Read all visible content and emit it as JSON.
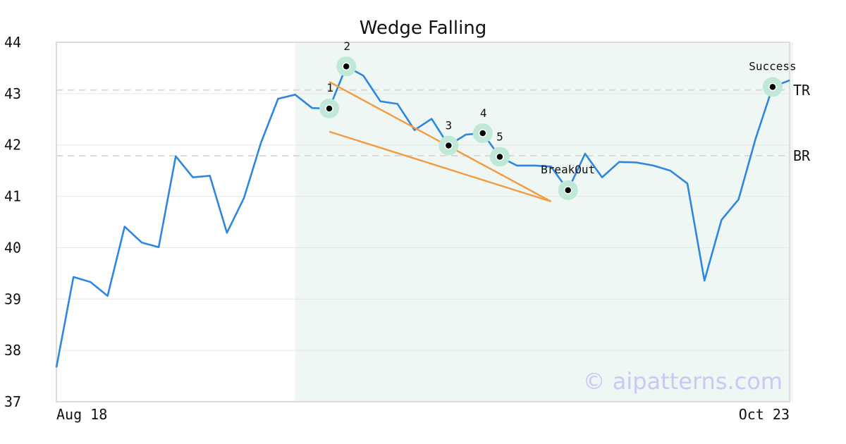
{
  "chart_data": {
    "type": "line",
    "title": "Wedge Falling",
    "xlabel": "",
    "ylabel": "",
    "ylim": [
      37,
      44
    ],
    "y_ticks": [
      37,
      38,
      39,
      40,
      41,
      42,
      43,
      44
    ],
    "x_tick_labels": [
      "Aug 18",
      "Oct 23"
    ],
    "grid": true,
    "series": [
      {
        "color": "#2e86de",
        "values": [
          37.67,
          39.43,
          39.33,
          39.06,
          40.41,
          40.1,
          40.01,
          41.78,
          41.37,
          41.4,
          40.29,
          40.97,
          42.05,
          42.9,
          42.98,
          42.72,
          42.71,
          43.53,
          43.35,
          42.85,
          42.8,
          42.29,
          42.51,
          41.99,
          42.2,
          42.23,
          41.77,
          41.6,
          41.6,
          41.58,
          41.12,
          41.83,
          41.37,
          41.67,
          41.66,
          41.6,
          41.5,
          41.25,
          39.36,
          40.54,
          40.94,
          42.12,
          43.13,
          43.26
        ]
      }
    ],
    "highlight_region": {
      "start_index": 14,
      "end_index": 43.2,
      "color": "#eef7f3"
    },
    "reference_lines": [
      {
        "label": "TR",
        "value": 43.07
      },
      {
        "label": "BR",
        "value": 41.79
      }
    ],
    "pattern_points": [
      {
        "label": "1",
        "index": 16,
        "value": 42.71
      },
      {
        "label": "2",
        "index": 17,
        "value": 43.53
      },
      {
        "label": "3",
        "index": 23,
        "value": 41.99
      },
      {
        "label": "4",
        "index": 25,
        "value": 42.23
      },
      {
        "label": "5",
        "index": 26,
        "value": 41.77
      },
      {
        "label": "BreakOut",
        "index": 30,
        "value": 41.12
      },
      {
        "label": "Success",
        "index": 42,
        "value": 43.13
      }
    ],
    "trend_lines": [
      {
        "from_index": 16,
        "from_value": 43.23,
        "to_index": 29,
        "to_value": 40.9
      },
      {
        "from_index": 16,
        "from_value": 42.26,
        "to_index": 29,
        "to_value": 40.9
      }
    ],
    "colors": {
      "line": "#2e86de",
      "trend": "#f59a3e",
      "marker_halo": "#bfe8d6",
      "reference": "#d9d9d9"
    },
    "watermark": "© aipatterns.com"
  }
}
